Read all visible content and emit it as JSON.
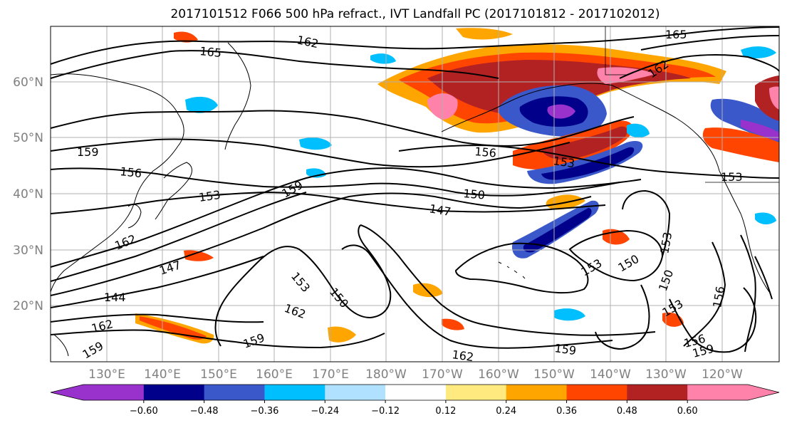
{
  "title": "2017101512 F066 500 hPa refract., IVT Landfall PC (2017101812 - 2017102012)",
  "lat_labels": [
    "60°N",
    "50°N",
    "40°N",
    "30°N",
    "20°N"
  ],
  "lon_labels": [
    "130°E",
    "140°E",
    "150°E",
    "160°E",
    "170°E",
    "180°W",
    "170°W",
    "160°W",
    "150°W",
    "140°W",
    "130°W",
    "120°W"
  ],
  "colorbar": {
    "colors": [
      "#9932cc",
      "#00008b",
      "#3a58c9",
      "#00bfff",
      "#b0e2ff",
      "#ffffff",
      "#ffea80",
      "#ffa500",
      "#ff4500",
      "#b22222",
      "#ff82ab"
    ],
    "extend_low": "#9932cc",
    "extend_high": "#ff82ab",
    "tick_labels": [
      "−0.60",
      "−0.48",
      "−0.36",
      "−0.24",
      "−0.12",
      "0.12",
      "0.24",
      "0.36",
      "0.48",
      "0.60"
    ]
  },
  "contour_labels": [
    "162",
    "165",
    "165",
    "162",
    "159",
    "156",
    "153",
    "159",
    "156",
    "150",
    "147",
    "153",
    "162",
    "147",
    "144",
    "162",
    "153",
    "159",
    "153",
    "150",
    "150",
    "153",
    "159",
    "162",
    "153",
    "150",
    "153",
    "156",
    "156",
    "159",
    "162",
    "159"
  ]
}
